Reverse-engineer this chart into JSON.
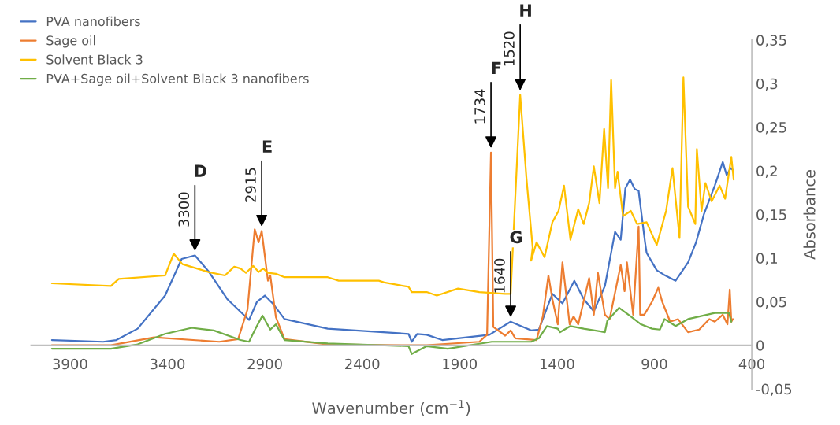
{
  "chart_data": {
    "type": "line",
    "xlabel": "Wavenumber (cm$^{−1}$)",
    "ylabel": "Absorbance",
    "xlim": [
      4100,
      400
    ],
    "xticks": [
      3900,
      3400,
      2900,
      2400,
      1900,
      1400,
      900,
      400
    ],
    "ylim": [
      -0.05,
      0.35
    ],
    "yticks": [
      {
        "value": -0.05,
        "label": "-0,05"
      },
      0,
      {
        "value": 0.05,
        "label": "0,05"
      },
      {
        "value": 0.1,
        "label": "0,1"
      },
      {
        "value": 0.15,
        "label": "0,15"
      },
      {
        "value": 0.2,
        "label": "0,2"
      },
      {
        "value": 0.25,
        "label": "0,25"
      },
      {
        "value": 0.3,
        "label": "0,3"
      },
      {
        "value": 0.35,
        "label": "0,35"
      }
    ],
    "grid": false,
    "legend": "top left",
    "marker": "none",
    "line_style": "solid",
    "series": [
      {
        "name": "PVA nanofibers",
        "color": "#4472c4",
        "x": [
          3993,
          3730,
          3662,
          3553,
          3412,
          3327,
          3259,
          3190,
          3093,
          2981,
          2940,
          2900,
          2856,
          2799,
          2577,
          2162,
          2146,
          2118,
          2069,
          1989,
          1747,
          1638,
          1533,
          1493,
          1424,
          1372,
          1311,
          1263,
          1211,
          1154,
          1102,
          1073,
          1049,
          1025,
          1001,
          981,
          948,
          940,
          888,
          852,
          791,
          727,
          686,
          646,
          590,
          549,
          529,
          509,
          497
        ],
        "values": [
          0.006,
          0.004,
          0.006,
          0.019,
          0.057,
          0.099,
          0.103,
          0.085,
          0.053,
          0.029,
          0.05,
          0.057,
          0.047,
          0.03,
          0.019,
          0.013,
          0.004,
          0.013,
          0.012,
          0.006,
          0.012,
          0.027,
          0.017,
          0.018,
          0.059,
          0.048,
          0.074,
          0.053,
          0.039,
          0.068,
          0.13,
          0.121,
          0.18,
          0.19,
          0.179,
          0.177,
          0.118,
          0.106,
          0.086,
          0.081,
          0.074,
          0.095,
          0.118,
          0.15,
          0.183,
          0.21,
          0.195,
          0.203,
          0.201
        ]
      },
      {
        "name": "Sage oil",
        "color": "#ed7d31",
        "x": [
          3993,
          3690,
          3468,
          3134,
          3037,
          2989,
          2952,
          2932,
          2916,
          2884,
          2872,
          2843,
          2799,
          2577,
          2162,
          2069,
          1799,
          1759,
          1739,
          1727,
          1666,
          1638,
          1614,
          1505,
          1473,
          1444,
          1424,
          1396,
          1372,
          1335,
          1315,
          1291,
          1235,
          1211,
          1190,
          1154,
          1130,
          1073,
          1053,
          1041,
          1009,
          981,
          973,
          952,
          912,
          880,
          860,
          819,
          779,
          727,
          670,
          618,
          590,
          549,
          525,
          513,
          505,
          497
        ],
        "values": [
          0.0,
          0.0,
          0.009,
          0.004,
          0.007,
          0.041,
          0.133,
          0.118,
          0.131,
          0.074,
          0.08,
          0.032,
          0.007,
          0.001,
          0.0,
          0.0,
          0.004,
          0.012,
          0.221,
          0.021,
          0.011,
          0.017,
          0.008,
          0.006,
          0.033,
          0.08,
          0.053,
          0.024,
          0.095,
          0.024,
          0.033,
          0.024,
          0.077,
          0.035,
          0.083,
          0.035,
          0.03,
          0.092,
          0.062,
          0.095,
          0.035,
          0.136,
          0.035,
          0.035,
          0.05,
          0.066,
          0.05,
          0.027,
          0.03,
          0.015,
          0.018,
          0.03,
          0.027,
          0.035,
          0.024,
          0.064,
          0.027,
          0.03
        ]
      },
      {
        "name": "Solvent Black 3",
        "color": "#ffc000",
        "x": [
          3993,
          3690,
          3650,
          3412,
          3368,
          3323,
          3190,
          3105,
          3057,
          3025,
          2997,
          2960,
          2932,
          2908,
          2884,
          2843,
          2799,
          2577,
          2521,
          2315,
          2287,
          2162,
          2146,
          2106,
          2069,
          2017,
          1908,
          1799,
          1666,
          1638,
          1589,
          1557,
          1525,
          1533,
          1505,
          1464,
          1424,
          1392,
          1364,
          1331,
          1291,
          1263,
          1235,
          1211,
          1182,
          1158,
          1138,
          1122,
          1102,
          1089,
          1061,
          1021,
          989,
          940,
          888,
          840,
          807,
          771,
          751,
          727,
          690,
          682,
          658,
          638,
          606,
          565,
          537,
          505,
          493
        ],
        "values": [
          0.071,
          0.068,
          0.076,
          0.08,
          0.105,
          0.093,
          0.084,
          0.08,
          0.09,
          0.088,
          0.083,
          0.091,
          0.084,
          0.088,
          0.083,
          0.082,
          0.078,
          0.078,
          0.074,
          0.074,
          0.072,
          0.067,
          0.061,
          0.061,
          0.061,
          0.057,
          0.065,
          0.061,
          0.059,
          0.059,
          0.287,
          0.192,
          0.112,
          0.097,
          0.118,
          0.101,
          0.141,
          0.154,
          0.183,
          0.121,
          0.156,
          0.139,
          0.163,
          0.205,
          0.163,
          0.248,
          0.18,
          0.304,
          0.18,
          0.199,
          0.148,
          0.154,
          0.139,
          0.141,
          0.115,
          0.154,
          0.203,
          0.123,
          0.307,
          0.159,
          0.139,
          0.225,
          0.154,
          0.186,
          0.165,
          0.183,
          0.168,
          0.216,
          0.19
        ]
      },
      {
        "name": "PVA+Sage oil+Solvent Black 3 nanofibers",
        "color": "#70ad47",
        "x": [
          3993,
          3690,
          3553,
          3412,
          3275,
          3162,
          3025,
          2981,
          2948,
          2912,
          2872,
          2843,
          2799,
          2577,
          2162,
          2146,
          2069,
          1961,
          1735,
          1694,
          1533,
          1493,
          1452,
          1396,
          1384,
          1331,
          1263,
          1154,
          1142,
          1081,
          1021,
          969,
          912,
          872,
          848,
          791,
          727,
          590,
          517,
          505
        ],
        "values": [
          -0.004,
          -0.004,
          0.001,
          0.013,
          0.02,
          0.017,
          0.006,
          0.004,
          0.019,
          0.034,
          0.018,
          0.024,
          0.006,
          0.002,
          -0.001,
          -0.01,
          -0.001,
          -0.004,
          0.004,
          0.004,
          0.004,
          0.008,
          0.022,
          0.019,
          0.015,
          0.022,
          0.019,
          0.015,
          0.028,
          0.043,
          0.033,
          0.024,
          0.019,
          0.018,
          0.03,
          0.022,
          0.03,
          0.037,
          0.037,
          0.027
        ]
      }
    ],
    "annotations": [
      {
        "text": "3300",
        "x": 3259,
        "y": 0.103
      },
      {
        "text": "D",
        "x": 3259,
        "y": 0.103
      },
      {
        "text": "2915",
        "x": 2916,
        "y": 0.131
      },
      {
        "text": "E",
        "x": 2916,
        "y": 0.131
      },
      {
        "text": "1734",
        "x": 1739,
        "y": 0.221
      },
      {
        "text": "F",
        "x": 1739,
        "y": 0.221
      },
      {
        "text": "1640",
        "x": 1638,
        "y": 0.027
      },
      {
        "text": "G",
        "x": 1638,
        "y": 0.027
      },
      {
        "text": "1520",
        "x": 1589,
        "y": 0.287
      },
      {
        "text": "H",
        "x": 1589,
        "y": 0.287
      }
    ]
  }
}
